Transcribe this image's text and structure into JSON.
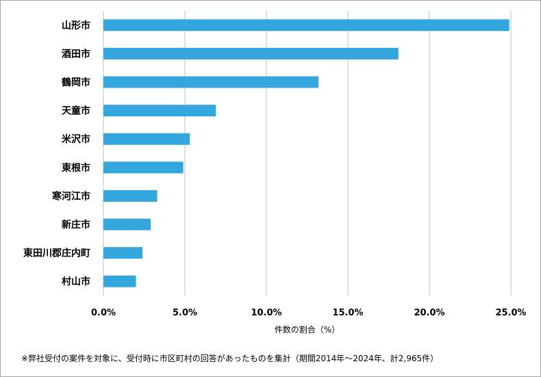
{
  "chart_data": {
    "type": "bar",
    "orientation": "horizontal",
    "categories": [
      "山形市",
      "酒田市",
      "鶴岡市",
      "天童市",
      "米沢市",
      "東根市",
      "寒河江市",
      "新庄市",
      "東田川郡庄内町",
      "村山市"
    ],
    "values": [
      24.9,
      18.1,
      13.2,
      6.9,
      5.3,
      4.9,
      3.3,
      2.9,
      2.4,
      2.0
    ],
    "xlabel": "件数の割合（%）",
    "xlim": [
      0,
      25
    ],
    "xticks": [
      "0.0%",
      "5.0%",
      "10.0%",
      "15.0%",
      "20.0%",
      "25.0%"
    ],
    "grid": "vertical",
    "bar_color": "#33a6dd",
    "grid_color": "#bfbfbf"
  },
  "footnote": "※弊社受付の案件を対象に、受付時に市区町村の回答があったものを集計（期間2014年～2024年、計2,965件）"
}
